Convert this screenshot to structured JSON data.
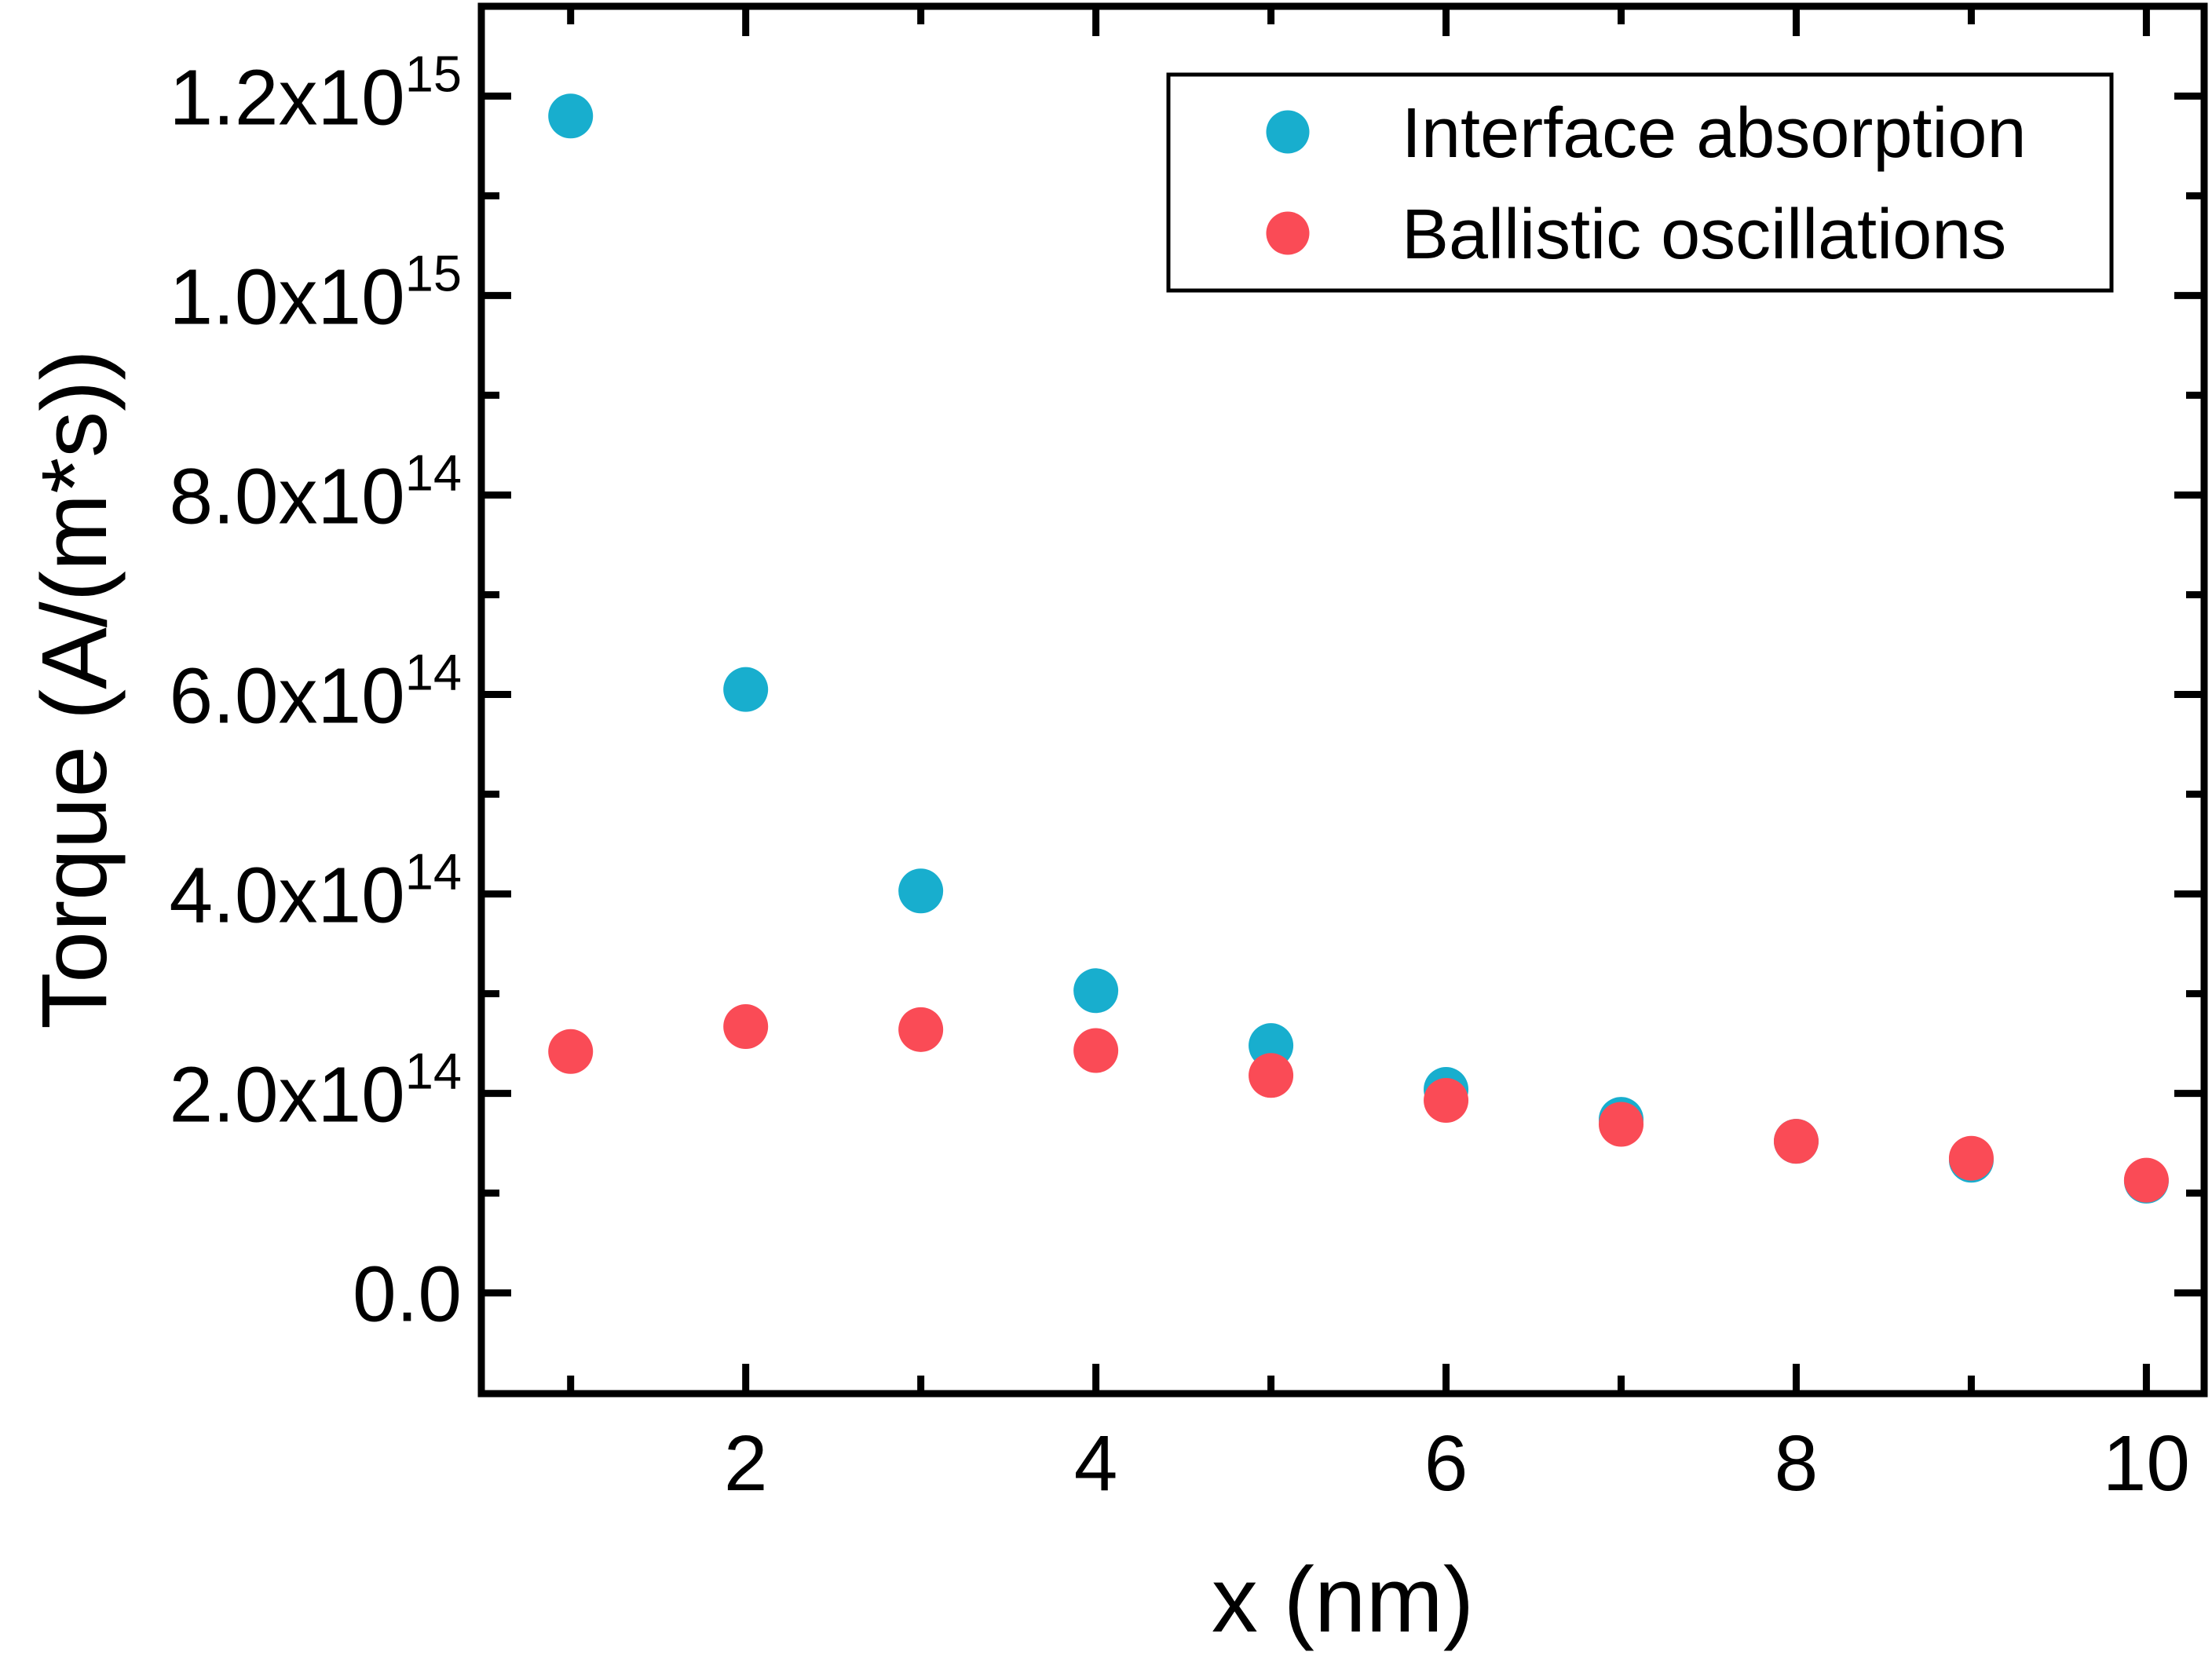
{
  "figure": {
    "background": "#ffffff",
    "frame_color": "#000000",
    "accent_blue": "#18AECE",
    "accent_red": "#FA4B56"
  },
  "chart_data": {
    "type": "scatter",
    "title": "",
    "xlabel": "x (nm)",
    "ylabel": "Torque (A/(m*s))",
    "xlim": [
      0.49,
      10.33
    ],
    "ylim": [
      -101000000000000.0,
      1290000000000000.0
    ],
    "grid": false,
    "marker": "circle",
    "x": [
      1,
      2,
      3,
      4,
      5,
      6,
      7,
      8,
      9,
      10
    ],
    "series": [
      {
        "name": "Interface absorption",
        "color": "#18AECE",
        "values": [
          1180000000000000.0,
          605000000000000.0,
          403000000000000.0,
          303000000000000.0,
          248000000000000.0,
          204000000000000.0,
          174000000000000.0,
          152000000000000.0,
          133000000000000.0,
          112000000000000.0
        ]
      },
      {
        "name": "Ballistic oscillations",
        "color": "#FA4B56",
        "values": [
          242000000000000.0,
          267000000000000.0,
          264000000000000.0,
          243000000000000.0,
          218000000000000.0,
          193000000000000.0,
          169000000000000.0,
          152000000000000.0,
          135000000000000.0,
          113000000000000.0
        ]
      }
    ],
    "x_ticks": {
      "major": [
        2,
        4,
        6,
        8,
        10
      ],
      "labels": [
        "2",
        "4",
        "6",
        "8",
        "10"
      ],
      "minor": [
        1,
        3,
        5,
        7,
        9
      ]
    },
    "y_ticks": {
      "major": [
        {
          "v": 0,
          "label": "0.0"
        },
        {
          "v": 200000000000000.0,
          "label": "2.0x10^14"
        },
        {
          "v": 400000000000000.0,
          "label": "4.0x10^14"
        },
        {
          "v": 600000000000000.0,
          "label": "6.0x10^14"
        },
        {
          "v": 800000000000000.0,
          "label": "8.0x10^14"
        },
        {
          "v": 1000000000000000.0,
          "label": "1.0x10^15"
        },
        {
          "v": 1200000000000000.0,
          "label": "1.2x10^15"
        }
      ],
      "minor": [
        100000000000000.0,
        300000000000000.0,
        500000000000000.0,
        700000000000000.0,
        900000000000000.0,
        1100000000000000.0
      ]
    },
    "legend": {
      "position": "top-right",
      "entries": [
        "Interface absorption",
        "Ballistic oscillations"
      ]
    }
  }
}
